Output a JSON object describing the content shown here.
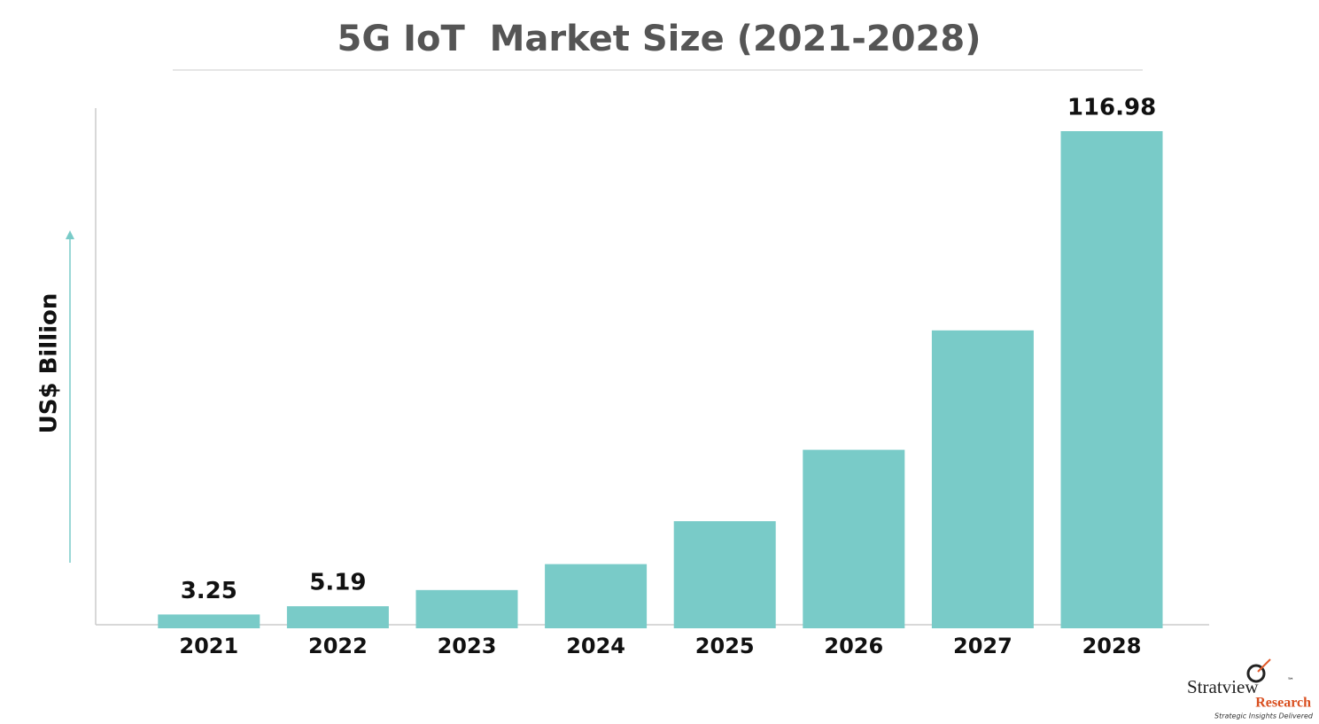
{
  "chart_data": {
    "type": "bar",
    "title": "5G IoT  Market Size (2021-2028)",
    "y_label": "US$ Billion",
    "categories": [
      "2021",
      "2022",
      "2023",
      "2024",
      "2025",
      "2026",
      "2027",
      "2028"
    ],
    "values": [
      3.25,
      5.19,
      9.0,
      15.1,
      25.2,
      42.0,
      70.1,
      116.98
    ],
    "value_labels": [
      "3.25",
      "5.19",
      null,
      null,
      null,
      null,
      null,
      "116.98"
    ],
    "color": "#79cbc8"
  },
  "logo": {
    "name": "Stratview",
    "trademark": "™",
    "sub": "Research",
    "tagline": "Strategic Insights Delivered"
  }
}
